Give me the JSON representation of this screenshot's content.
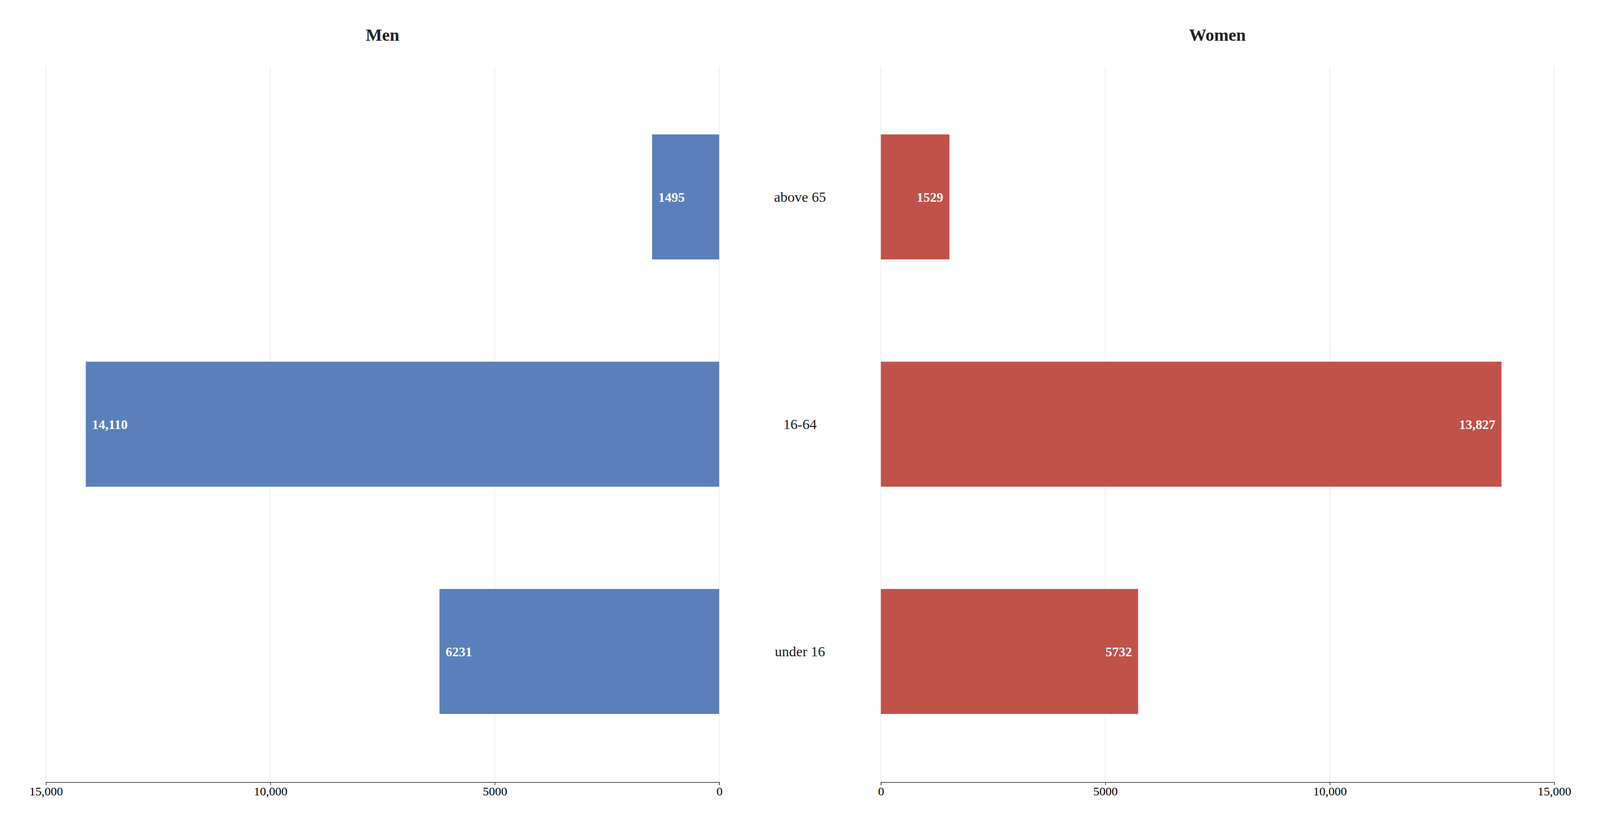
{
  "chart_data": {
    "type": "bar",
    "orientation": "horizontal",
    "data_labels": true,
    "categories": [
      "under 16",
      "16-64",
      "above 65"
    ],
    "series": [
      {
        "name": "Men",
        "color": "#5b7fba",
        "values": [
          6231,
          14110,
          1495
        ],
        "value_labels": [
          "6231",
          "14,110",
          "1495"
        ],
        "xlim": [
          15000,
          0
        ],
        "xticks": [
          {
            "value": 15000,
            "label": "15,000"
          },
          {
            "value": 10000,
            "label": "10,000"
          },
          5000,
          0
        ]
      },
      {
        "name": "Women",
        "color": "#c0524a",
        "values": [
          5732,
          13827,
          1529
        ],
        "value_labels": [
          "5732",
          "13,827",
          "1529"
        ],
        "xlim": [
          0,
          15000
        ],
        "xticks": [
          0,
          5000,
          {
            "value": 10000,
            "label": "10,000"
          },
          {
            "value": 15000,
            "label": "15,000"
          }
        ]
      }
    ]
  }
}
